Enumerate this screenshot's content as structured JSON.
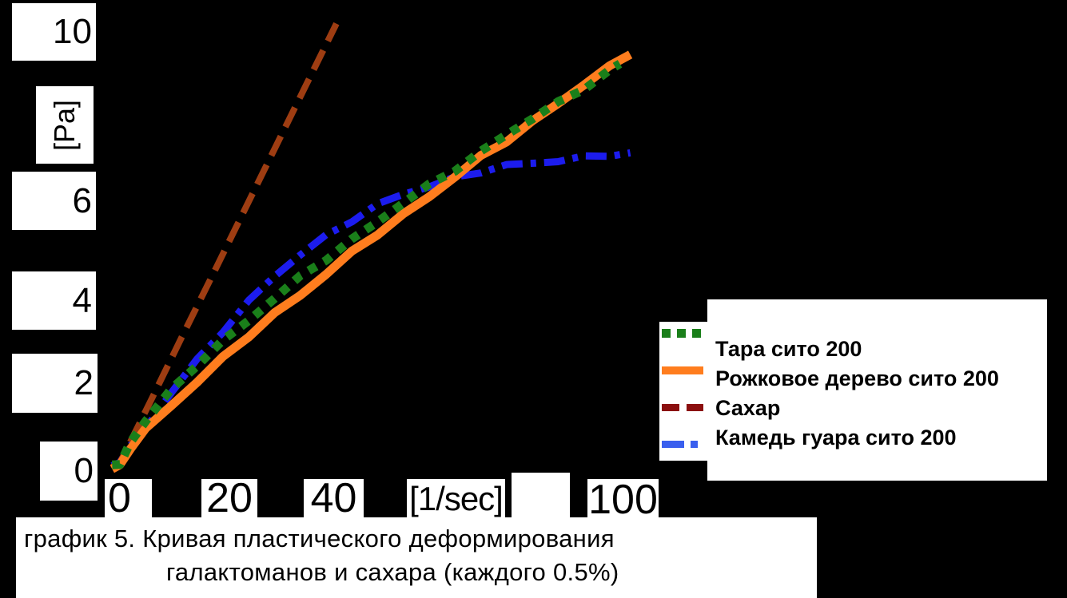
{
  "caption": {
    "line1": "график 5.  Кривая пластического деформирования",
    "line2": "галактоманов и сахара (каждого 0.5%)"
  },
  "colors": {
    "background": "#000000",
    "label_box": "#ffffff",
    "text": "#000000"
  },
  "chart_data": {
    "type": "line",
    "ylabel": "[Pa]",
    "xlabel": "[1/sec]",
    "xlim": [
      0,
      105
    ],
    "ylim": [
      0,
      10.5
    ],
    "grid": false,
    "legend_position": "right-bottom",
    "y_tick_labels": [
      "10",
      "6",
      "4",
      "2",
      "0"
    ],
    "y_tick_values": [
      10,
      6,
      4,
      2,
      0
    ],
    "x_tick_labels": [
      "0",
      "20",
      "40",
      "[1/sec]",
      "",
      "100"
    ],
    "x_tick_values": [
      0,
      20,
      40,
      60,
      80,
      100
    ],
    "series": [
      {
        "name": "Тара сито 200",
        "color": "#1a7f1a",
        "line_style": "dotted",
        "points": [
          [
            -1.5,
            -0.08
          ],
          [
            0,
            0
          ],
          [
            2,
            0.5
          ],
          [
            5,
            0.99
          ],
          [
            10,
            1.66
          ],
          [
            15,
            2.26
          ],
          [
            20,
            2.8
          ],
          [
            25,
            3.31
          ],
          [
            30,
            3.79
          ],
          [
            35,
            4.25
          ],
          [
            40,
            4.7
          ],
          [
            45,
            5.14
          ],
          [
            50,
            5.56
          ],
          [
            55,
            5.97
          ],
          [
            60,
            6.37
          ],
          [
            65,
            6.77
          ],
          [
            70,
            7.15
          ],
          [
            75,
            7.54
          ],
          [
            80,
            7.91
          ],
          [
            85,
            8.28
          ],
          [
            90,
            8.64
          ],
          [
            95,
            9.0
          ],
          [
            97,
            9.14
          ]
        ]
      },
      {
        "name": "Рожковое дерево сито 200",
        "color": "#ff7d1e",
        "line_style": "solid",
        "points": [
          [
            -1.5,
            -0.08
          ],
          [
            0,
            0
          ],
          [
            2,
            0.34
          ],
          [
            5,
            0.74
          ],
          [
            10,
            1.34
          ],
          [
            15,
            1.89
          ],
          [
            20,
            2.42
          ],
          [
            25,
            2.92
          ],
          [
            30,
            3.41
          ],
          [
            35,
            3.89
          ],
          [
            40,
            4.36
          ],
          [
            45,
            4.82
          ],
          [
            50,
            5.27
          ],
          [
            55,
            5.71
          ],
          [
            60,
            6.15
          ],
          [
            65,
            6.58
          ],
          [
            70,
            7.01
          ],
          [
            75,
            7.43
          ],
          [
            80,
            7.85
          ],
          [
            85,
            8.27
          ],
          [
            90,
            8.68
          ],
          [
            95,
            9.09
          ],
          [
            99,
            9.42
          ]
        ]
      },
      {
        "name": "Сахар",
        "color": "#9e3d12",
        "legend_color": "#8b0f0f",
        "line_style": "dashed",
        "points": [
          [
            -1.5,
            -0.08
          ],
          [
            0,
            0
          ],
          [
            6,
            1.44
          ],
          [
            12,
            2.89
          ],
          [
            18,
            4.33
          ],
          [
            24,
            5.77
          ],
          [
            30,
            7.22
          ],
          [
            36,
            8.66
          ],
          [
            42,
            10.1
          ]
        ]
      },
      {
        "name": "Камедь гуара сито 200",
        "color": "#1c1cee",
        "legend_color": "#3a5fee",
        "line_style": "dashdot",
        "points": [
          [
            -1.5,
            -0.08
          ],
          [
            0,
            0
          ],
          [
            2,
            0.33
          ],
          [
            5,
            0.81
          ],
          [
            10,
            1.61
          ],
          [
            15,
            2.36
          ],
          [
            20,
            3.07
          ],
          [
            25,
            3.71
          ],
          [
            30,
            4.28
          ],
          [
            35,
            4.79
          ],
          [
            40,
            5.23
          ],
          [
            45,
            5.6
          ],
          [
            50,
            5.91
          ],
          [
            55,
            6.17
          ],
          [
            60,
            6.38
          ],
          [
            65,
            6.56
          ],
          [
            70,
            6.7
          ],
          [
            75,
            6.81
          ],
          [
            80,
            6.9
          ],
          [
            85,
            6.97
          ],
          [
            90,
            7.02
          ],
          [
            95,
            7.07
          ],
          [
            99,
            7.1
          ]
        ]
      }
    ]
  }
}
